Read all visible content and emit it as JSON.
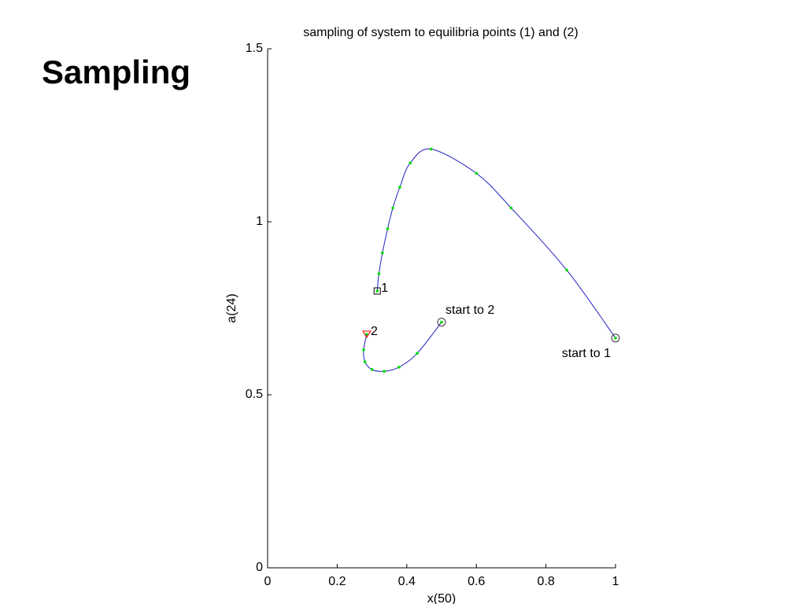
{
  "header": {
    "title": "Sampling"
  },
  "chart_data": {
    "type": "line",
    "title": "sampling of system to equilibria points (1) and (2)",
    "xlabel": "x(50)",
    "ylabel": "a(24)",
    "xlim": [
      0,
      1
    ],
    "ylim": [
      0,
      1.5
    ],
    "xticks": [
      0,
      0.2,
      0.4,
      0.6,
      0.8,
      1
    ],
    "yticks": [
      0,
      0.5,
      1,
      1.5
    ],
    "grid": false,
    "marker_color": "#00dd00",
    "series": [
      {
        "color": "#2020c0",
        "start_label": "start to 1",
        "end_label": "1",
        "end_marker": "square",
        "end_color": "#000000",
        "x": [
          1.0,
          0.86,
          0.7,
          0.6,
          0.47,
          0.41,
          0.38,
          0.36,
          0.345,
          0.33,
          0.32,
          0.315
        ],
        "values": [
          0.664,
          0.86,
          1.04,
          1.14,
          1.21,
          1.17,
          1.1,
          1.04,
          0.98,
          0.91,
          0.85,
          0.8
        ]
      },
      {
        "color": "#2020c0",
        "start_label": "start to 2",
        "end_label": "2",
        "end_marker": "triangle",
        "end_color": "#ff0000",
        "x": [
          0.5,
          0.43,
          0.378,
          0.335,
          0.3,
          0.28,
          0.276,
          0.285
        ],
        "values": [
          0.71,
          0.62,
          0.58,
          0.568,
          0.573,
          0.595,
          0.63,
          0.675
        ]
      }
    ]
  }
}
